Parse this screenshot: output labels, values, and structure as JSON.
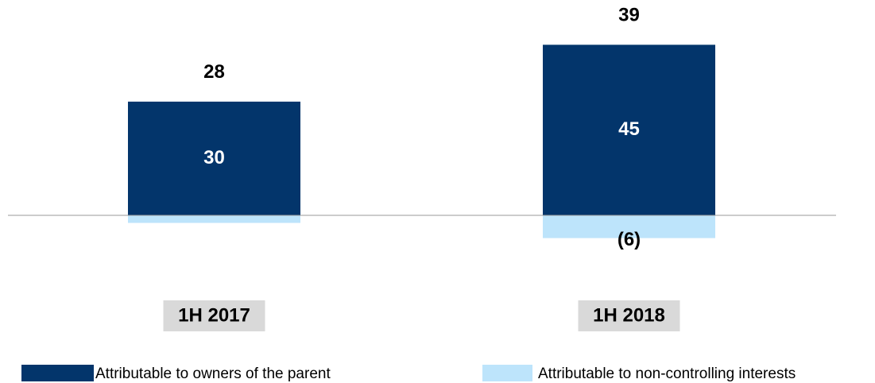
{
  "chart_data": {
    "type": "stacked-bar",
    "categories": [
      "1H 2017",
      "1H 2018"
    ],
    "totals": [
      28,
      39
    ],
    "series": [
      {
        "name": "Attributable to owners of the parent",
        "color": "#03356b",
        "values": [
          30,
          45
        ]
      },
      {
        "name": "Attributable to non-controlling interests",
        "color": "#bde4fb",
        "values": [
          -2,
          -6
        ],
        "value_labels": [
          null,
          "(6)"
        ]
      }
    ],
    "ylim": [
      -10,
      50
    ]
  }
}
